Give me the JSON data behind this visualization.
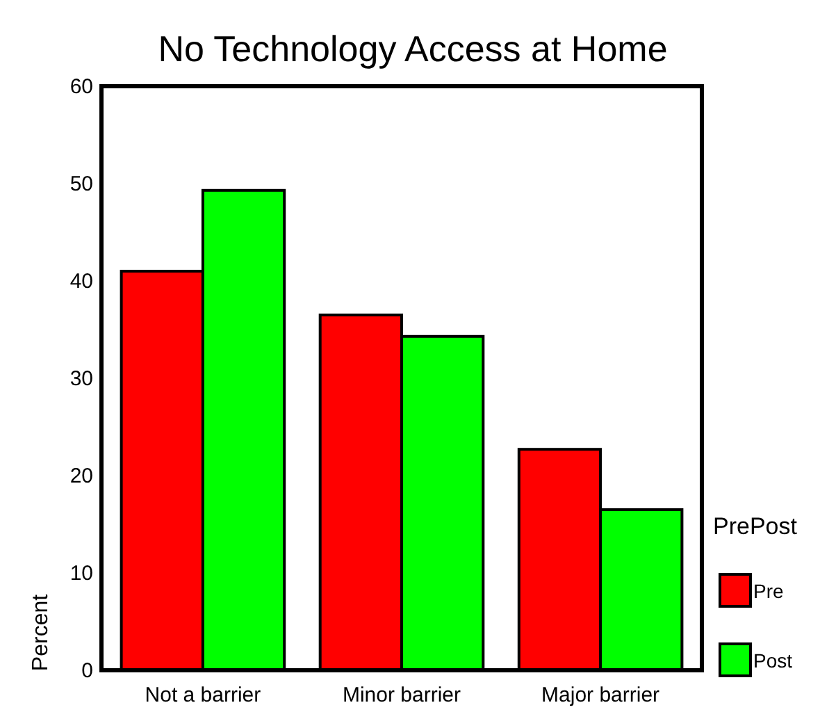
{
  "chart_data": {
    "type": "bar",
    "title": "No Technology Access at Home",
    "ylabel": "Percent",
    "legend_title": "PrePost",
    "categories": [
      "Not a barrier",
      "Minor barrier",
      "Major barrier"
    ],
    "series": [
      {
        "name": "Pre",
        "color": "#ff0000",
        "values": [
          41.0,
          36.5,
          22.7
        ]
      },
      {
        "name": "Post",
        "color": "#00ff00",
        "values": [
          49.3,
          34.3,
          16.5
        ]
      }
    ],
    "ylim": [
      0,
      60
    ],
    "yticks": [
      0,
      10,
      20,
      30,
      40,
      50,
      60
    ],
    "grid": false,
    "legend": "right"
  }
}
